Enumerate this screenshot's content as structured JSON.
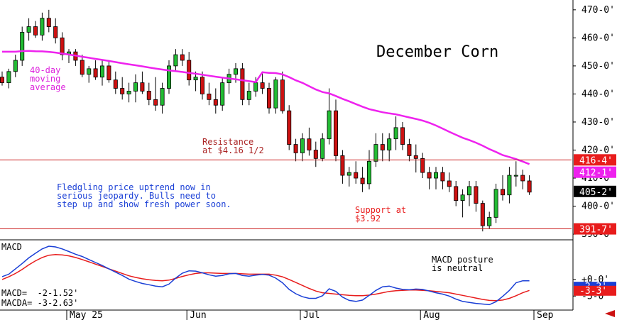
{
  "chart_data": {
    "type": "candlestick",
    "title": "December Corn",
    "y_ticks": [
      "470-0'",
      "460-0'",
      "450-0'",
      "440-0'",
      "430-0'",
      "420-0'",
      "410-0'",
      "400-0'",
      "390-0'"
    ],
    "y_tick_values": [
      470,
      460,
      450,
      440,
      430,
      420,
      410,
      400,
      390
    ],
    "ylim": [
      388.5,
      473.5
    ],
    "x_labels": [
      "May 25",
      "Jun",
      "Jul",
      "Aug",
      "Sep"
    ],
    "x_label_positions": [
      10,
      28,
      45,
      63,
      80
    ],
    "n_bars": 80,
    "price_tags": [
      {
        "label": "416-4'",
        "value": 416.5,
        "color": "#e81c1c",
        "text_color": "#ffffff"
      },
      {
        "label": "412-1'",
        "value": 412.1,
        "color": "#ee22ee",
        "text_color": "#ffffff"
      },
      {
        "label": "405-2'",
        "value": 405.25,
        "color": "#000000",
        "text_color": "#ffffff"
      },
      {
        "label": "391-7'",
        "value": 391.9,
        "color": "#e81c1c",
        "text_color": "#ffffff"
      }
    ],
    "horizontal_lines": [
      {
        "name": "resistance",
        "value": 416.5,
        "color": "#cc2222"
      },
      {
        "name": "support",
        "value": 391.9,
        "color": "#cc2222"
      }
    ],
    "annotations": {
      "resistance": "Resistance\nat $4.16 1/2",
      "support": "Support at\n$3.92",
      "moving_average": "40-day\nmoving\naverage",
      "comment": "Fledgling price uptrend now in\nserious jeopardy. Bulls need to\nstep up and show fresh power soon.",
      "macd_comment": "MACD posture\nis neutral"
    },
    "candles": [
      [
        446,
        448,
        443,
        444
      ],
      [
        444,
        449,
        442,
        448
      ],
      [
        448,
        454,
        446,
        452
      ],
      [
        452,
        464,
        450,
        462
      ],
      [
        462,
        467,
        459,
        464
      ],
      [
        464,
        466,
        460,
        461
      ],
      [
        461,
        469,
        459,
        467
      ],
      [
        467,
        470,
        462,
        464
      ],
      [
        464,
        467,
        458,
        460
      ],
      [
        460,
        462,
        452,
        454
      ],
      [
        454,
        456,
        451,
        455
      ],
      [
        455,
        456,
        450,
        452
      ],
      [
        452,
        454,
        446,
        447
      ],
      [
        447,
        450,
        444,
        449
      ],
      [
        449,
        452,
        445,
        446
      ],
      [
        446,
        452,
        443,
        450
      ],
      [
        450,
        452,
        444,
        445
      ],
      [
        445,
        448,
        440,
        442
      ],
      [
        442,
        446,
        438,
        440
      ],
      [
        440,
        444,
        437,
        441
      ],
      [
        441,
        447,
        437,
        444
      ],
      [
        444,
        448,
        440,
        441
      ],
      [
        441,
        444,
        436,
        438
      ],
      [
        438,
        446,
        434,
        436
      ],
      [
        436,
        444,
        433,
        442
      ],
      [
        442,
        452,
        440,
        450
      ],
      [
        450,
        456,
        448,
        454
      ],
      [
        454,
        456,
        450,
        452
      ],
      [
        452,
        455,
        443,
        445
      ],
      [
        445,
        448,
        441,
        446
      ],
      [
        446,
        448,
        438,
        440
      ],
      [
        440,
        444,
        436,
        438
      ],
      [
        438,
        442,
        433,
        436
      ],
      [
        436,
        446,
        434,
        444
      ],
      [
        444,
        449,
        440,
        447
      ],
      [
        447,
        451,
        444,
        449
      ],
      [
        449,
        451,
        436,
        438
      ],
      [
        438,
        444,
        436,
        441
      ],
      [
        441,
        446,
        439,
        444
      ],
      [
        444,
        448,
        440,
        442
      ],
      [
        442,
        444,
        433,
        435
      ],
      [
        435,
        446,
        433,
        445
      ],
      [
        445,
        448,
        433,
        434
      ],
      [
        434,
        436,
        420,
        422
      ],
      [
        422,
        424,
        416,
        419
      ],
      [
        419,
        426,
        416,
        424
      ],
      [
        424,
        428,
        418,
        420
      ],
      [
        420,
        423,
        414,
        417
      ],
      [
        417,
        426,
        416,
        424
      ],
      [
        424,
        442,
        422,
        434
      ],
      [
        434,
        438,
        416,
        418
      ],
      [
        418,
        420,
        408,
        411
      ],
      [
        411,
        414,
        407,
        412
      ],
      [
        412,
        416,
        408,
        410
      ],
      [
        410,
        414,
        405,
        408
      ],
      [
        408,
        420,
        406,
        416
      ],
      [
        416,
        426,
        414,
        422
      ],
      [
        422,
        426,
        416,
        420
      ],
      [
        420,
        426,
        416,
        424
      ],
      [
        424,
        432,
        420,
        428
      ],
      [
        428,
        430,
        420,
        422
      ],
      [
        422,
        424,
        416,
        418
      ],
      [
        418,
        422,
        412,
        417
      ],
      [
        417,
        419,
        410,
        412
      ],
      [
        412,
        414,
        406,
        410
      ],
      [
        410,
        414,
        406,
        412
      ],
      [
        412,
        414,
        406,
        409
      ],
      [
        409,
        412,
        405,
        407
      ],
      [
        407,
        409,
        400,
        402
      ],
      [
        402,
        406,
        396,
        404
      ],
      [
        404,
        409,
        400,
        407
      ],
      [
        407,
        409,
        398,
        401
      ],
      [
        401,
        402,
        391,
        393
      ],
      [
        393,
        398,
        392,
        396
      ],
      [
        396,
        408,
        394,
        406
      ],
      [
        406,
        411,
        402,
        404
      ],
      [
        404,
        414,
        401,
        411
      ],
      [
        411,
        416,
        407,
        411
      ],
      [
        411,
        413,
        406,
        409
      ],
      [
        409,
        411,
        404,
        405
      ]
    ],
    "macd": [
      0.85,
      1.6,
      3.2,
      4.8,
      6.5,
      7.9,
      9.2,
      10.0,
      9.8,
      9.2,
      8.4,
      7.6,
      6.9,
      6.0,
      5.1,
      4.2,
      3.2,
      2.2,
      1.2,
      0.1,
      -0.6,
      -1.2,
      -1.6,
      -2.0,
      -2.2,
      -1.4,
      0.4,
      1.9,
      2.6,
      2.5,
      2.0,
      1.4,
      1.0,
      1.2,
      1.7,
      1.8,
      1.2,
      1.0,
      1.3,
      1.5,
      1.3,
      0.4,
      -1.0,
      -3.0,
      -4.3,
      -5.2,
      -5.7,
      -5.7,
      -4.9,
      -2.8,
      -3.6,
      -5.3,
      -6.3,
      -6.6,
      -6.2,
      -4.8,
      -3.3,
      -2.2,
      -2.0,
      -2.6,
      -3.0,
      -3.1,
      -2.9,
      -3.0,
      -3.5,
      -4.0,
      -4.4,
      -5.0,
      -5.9,
      -6.6,
      -6.9,
      -7.2,
      -7.4,
      -7.6,
      -6.7,
      -5.1,
      -3.3,
      -1.0,
      -0.4,
      -0.4
    ],
    "signal": [
      0.0,
      0.8,
      1.8,
      3.0,
      4.4,
      5.6,
      6.6,
      7.3,
      7.5,
      7.4,
      7.1,
      6.6,
      6.0,
      5.3,
      4.6,
      3.9,
      3.2,
      2.5,
      1.8,
      1.1,
      0.6,
      0.2,
      -0.1,
      -0.3,
      -0.4,
      -0.2,
      0.3,
      0.9,
      1.4,
      1.8,
      2.0,
      2.0,
      1.9,
      1.8,
      1.8,
      1.8,
      1.7,
      1.6,
      1.6,
      1.6,
      1.6,
      1.3,
      0.8,
      0.0,
      -0.9,
      -1.8,
      -2.7,
      -3.5,
      -4.0,
      -4.2,
      -4.4,
      -4.6,
      -4.8,
      -4.9,
      -4.9,
      -4.7,
      -4.4,
      -4.0,
      -3.6,
      -3.4,
      -3.3,
      -3.2,
      -3.2,
      -3.3,
      -3.4,
      -3.6,
      -3.8,
      -4.0,
      -4.4,
      -4.8,
      -5.2,
      -5.6,
      -6.0,
      -6.3,
      -6.4,
      -6.2,
      -5.7,
      -4.9,
      -4.0,
      -3.3
    ],
    "macd_ticks": [
      "+0-0'",
      "-5-0'"
    ],
    "macd_tick_values": [
      0,
      -5
    ],
    "macd_ylim": [
      -9.0,
      11.5
    ],
    "macd_tags": [
      {
        "label": "-2-2'",
        "value": -2.2,
        "color": "#1a3fd6",
        "text_color": "#ffffff"
      },
      {
        "label": "-3-3'",
        "value": -3.4,
        "color": "#e81c1c",
        "text_color": "#ffffff"
      }
    ]
  },
  "macd_panel": {
    "title": "MACD",
    "macd_text": "MACD=  -2-1.52'",
    "macda_text": "MACDA= -3-2.63'"
  },
  "colors": {
    "up_candle": "#22bb33",
    "down_candle": "#cc1111",
    "moving_average": "#ee22ee",
    "macd_line": "#1a3fd6",
    "signal_line": "#e81c1c",
    "moving_average_text": "#dd22dd",
    "comment_text": "#1a3fd6",
    "resistance_text": "#aa2222",
    "nav_arrow": "#cc1111"
  }
}
